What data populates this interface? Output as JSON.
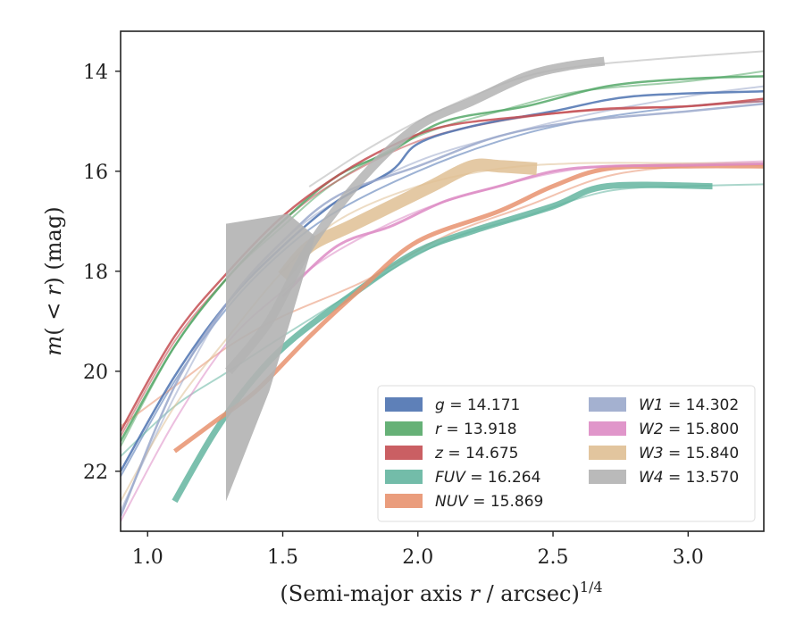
{
  "chart_data": {
    "type": "line",
    "xlabel": "(Semi-major axis r / arcsec)1/4",
    "ylabel": "m(< r) (mag)",
    "xlim": [
      0.9,
      3.28
    ],
    "ylim": [
      23.2,
      13.2
    ],
    "y_inverted": true,
    "grid": false,
    "legend_position": "lower-right",
    "x_ticks": [
      "1.0",
      "1.5",
      "2.0",
      "2.5",
      "3.0"
    ],
    "y_ticks": [
      "14",
      "16",
      "18",
      "20",
      "22"
    ],
    "series": [
      {
        "name": "g = 14.171",
        "color": "#4c72b0",
        "model": [
          [
            0.9,
            22.1
          ],
          [
            1.1,
            20.2
          ],
          [
            1.3,
            18.7
          ],
          [
            1.5,
            17.6
          ],
          [
            1.7,
            16.8
          ],
          [
            2.0,
            16.0
          ],
          [
            2.3,
            15.4
          ],
          [
            2.6,
            15.0
          ],
          [
            3.0,
            14.7
          ],
          [
            3.28,
            14.6
          ]
        ],
        "data": [
          [
            0.9,
            22.0
          ],
          [
            1.1,
            20.1
          ],
          [
            1.3,
            18.6
          ],
          [
            1.5,
            17.5
          ],
          [
            1.7,
            16.6
          ],
          [
            1.9,
            16.0
          ],
          [
            2.0,
            15.45
          ],
          [
            2.2,
            15.1
          ],
          [
            2.5,
            14.8
          ],
          [
            2.8,
            14.5
          ],
          [
            3.28,
            14.4
          ]
        ],
        "width": 2.5
      },
      {
        "name": "r = 13.918",
        "color": "#55a868",
        "model": [
          [
            0.9,
            21.5
          ],
          [
            1.1,
            19.5
          ],
          [
            1.3,
            18.1
          ],
          [
            1.5,
            17.1
          ],
          [
            1.7,
            16.2
          ],
          [
            2.0,
            15.3
          ],
          [
            2.3,
            14.8
          ],
          [
            2.6,
            14.4
          ],
          [
            3.0,
            14.2
          ],
          [
            3.28,
            14.0
          ]
        ],
        "data": [
          [
            0.9,
            21.4
          ],
          [
            1.1,
            19.5
          ],
          [
            1.3,
            18.1
          ],
          [
            1.5,
            17.0
          ],
          [
            1.7,
            16.1
          ],
          [
            1.9,
            15.6
          ],
          [
            2.1,
            15.0
          ],
          [
            2.4,
            14.7
          ],
          [
            2.7,
            14.3
          ],
          [
            3.0,
            14.15
          ],
          [
            3.28,
            14.1
          ]
        ],
        "width": 2.5
      },
      {
        "name": "z = 14.675",
        "color": "#c44e52",
        "model": [
          [
            0.9,
            21.3
          ],
          [
            1.1,
            19.4
          ],
          [
            1.3,
            18.1
          ],
          [
            1.5,
            17.0
          ],
          [
            1.7,
            16.2
          ],
          [
            2.0,
            15.4
          ],
          [
            2.3,
            15.0
          ],
          [
            2.6,
            14.8
          ],
          [
            3.0,
            14.7
          ],
          [
            3.28,
            14.6
          ]
        ],
        "data": [
          [
            0.9,
            21.2
          ],
          [
            1.1,
            19.3
          ],
          [
            1.3,
            18.0
          ],
          [
            1.5,
            16.9
          ],
          [
            1.7,
            16.1
          ],
          [
            1.9,
            15.5
          ],
          [
            2.1,
            15.1
          ],
          [
            2.4,
            14.9
          ],
          [
            2.7,
            14.75
          ],
          [
            3.0,
            14.7
          ],
          [
            3.28,
            14.55
          ]
        ],
        "width": 2.5
      },
      {
        "name": "FUV = 16.264",
        "color": "#64b5a0",
        "model": [
          [
            0.9,
            21.7
          ],
          [
            1.1,
            20.7
          ],
          [
            1.3,
            20.0
          ],
          [
            1.5,
            19.3
          ],
          [
            1.8,
            18.3
          ],
          [
            2.1,
            17.4
          ],
          [
            2.4,
            16.9
          ],
          [
            2.7,
            16.4
          ],
          [
            3.0,
            16.3
          ],
          [
            3.28,
            16.26
          ]
        ],
        "data": [
          [
            1.1,
            22.6
          ],
          [
            1.25,
            21.2
          ],
          [
            1.4,
            20.1
          ],
          [
            1.55,
            19.3
          ],
          [
            1.8,
            18.3
          ],
          [
            2.0,
            17.6
          ],
          [
            2.2,
            17.2
          ],
          [
            2.5,
            16.7
          ],
          [
            2.7,
            16.3
          ],
          [
            3.09,
            16.3
          ]
        ],
        "width": 7
      },
      {
        "name": "NUV = 15.869",
        "color": "#e8926f",
        "model": [
          [
            0.9,
            21.1
          ],
          [
            1.1,
            20.3
          ],
          [
            1.3,
            19.5
          ],
          [
            1.5,
            18.9
          ],
          [
            1.8,
            18.2
          ],
          [
            2.1,
            17.3
          ],
          [
            2.4,
            16.7
          ],
          [
            2.7,
            16.1
          ],
          [
            3.0,
            15.9
          ],
          [
            3.28,
            15.87
          ]
        ],
        "data": [
          [
            1.1,
            21.6
          ],
          [
            1.25,
            21.0
          ],
          [
            1.4,
            20.4
          ],
          [
            1.6,
            19.3
          ],
          [
            1.8,
            18.3
          ],
          [
            2.0,
            17.4
          ],
          [
            2.3,
            16.8
          ],
          [
            2.5,
            16.3
          ],
          [
            2.7,
            15.95
          ],
          [
            3.0,
            15.9
          ],
          [
            3.28,
            15.9
          ]
        ],
        "width": 5
      },
      {
        "name": "W1 = 14.302",
        "color": "#9aa8cb",
        "model": [
          [
            0.9,
            22.8
          ],
          [
            1.1,
            20.5
          ],
          [
            1.3,
            18.6
          ],
          [
            1.5,
            17.4
          ],
          [
            1.7,
            16.6
          ],
          [
            2.0,
            15.8
          ],
          [
            2.3,
            15.3
          ],
          [
            2.6,
            14.9
          ],
          [
            3.0,
            14.5
          ],
          [
            3.28,
            14.3
          ]
        ],
        "data": [
          [
            0.9,
            22.9
          ],
          [
            1.1,
            20.3
          ],
          [
            1.3,
            18.6
          ],
          [
            1.5,
            17.4
          ],
          [
            1.7,
            16.5
          ],
          [
            2.0,
            15.9
          ],
          [
            2.3,
            15.3
          ],
          [
            2.6,
            15.0
          ],
          [
            3.0,
            14.8
          ],
          [
            3.28,
            14.65
          ]
        ],
        "width": 2.5
      },
      {
        "name": "W2 = 15.800",
        "color": "#dd8bc4",
        "model": [
          [
            0.9,
            23.0
          ],
          [
            1.1,
            21.0
          ],
          [
            1.3,
            19.4
          ],
          [
            1.5,
            18.4
          ],
          [
            1.7,
            17.6
          ],
          [
            2.0,
            16.8
          ],
          [
            2.3,
            16.3
          ],
          [
            2.6,
            15.95
          ],
          [
            3.0,
            15.85
          ],
          [
            3.28,
            15.8
          ]
        ],
        "data": [
          [
            1.5,
            18.5
          ],
          [
            1.7,
            17.5
          ],
          [
            1.9,
            17.1
          ],
          [
            2.1,
            16.6
          ],
          [
            2.3,
            16.3
          ],
          [
            2.5,
            16.0
          ],
          [
            2.7,
            15.9
          ],
          [
            3.0,
            15.88
          ],
          [
            3.28,
            15.85
          ]
        ],
        "width": 3
      },
      {
        "name": "W3 = 15.840",
        "color": "#dfbf94",
        "model": [
          [
            0.9,
            22.6
          ],
          [
            1.1,
            20.7
          ],
          [
            1.3,
            19.3
          ],
          [
            1.5,
            18.0
          ],
          [
            1.7,
            17.0
          ],
          [
            2.0,
            16.3
          ],
          [
            2.3,
            15.95
          ],
          [
            2.6,
            15.84
          ],
          [
            3.0,
            15.84
          ],
          [
            3.28,
            15.84
          ]
        ],
        "data": [
          [
            1.5,
            18.1
          ],
          [
            1.6,
            17.5
          ],
          [
            1.75,
            17.1
          ],
          [
            1.9,
            16.7
          ],
          [
            2.05,
            16.3
          ],
          [
            2.2,
            15.9
          ],
          [
            2.3,
            15.9
          ],
          [
            2.44,
            15.95
          ]
        ],
        "width": 14
      },
      {
        "name": "W4 = 13.570",
        "color": "#b3b3b3",
        "model": [
          [
            1.6,
            16.3
          ],
          [
            1.8,
            15.6
          ],
          [
            2.0,
            15.0
          ],
          [
            2.2,
            14.5
          ],
          [
            2.4,
            14.1
          ],
          [
            2.6,
            13.9
          ],
          [
            2.9,
            13.75
          ],
          [
            3.28,
            13.6
          ]
        ],
        "data": [
          [
            1.3,
            20.0
          ],
          [
            1.45,
            19.0
          ],
          [
            1.6,
            17.5
          ],
          [
            1.8,
            16.1
          ],
          [
            2.0,
            15.1
          ],
          [
            2.2,
            14.6
          ],
          [
            2.4,
            14.1
          ],
          [
            2.55,
            13.9
          ],
          [
            2.69,
            13.8
          ]
        ],
        "width": 10
      }
    ]
  },
  "legend": {
    "columns": 2,
    "labels": [
      "g = 14.171",
      "r = 13.918",
      "z = 14.675",
      "FUV = 16.264",
      "NUV = 15.869",
      "W1 = 14.302",
      "W2 = 15.800",
      "W3 = 15.840",
      "W4 = 13.570"
    ]
  }
}
